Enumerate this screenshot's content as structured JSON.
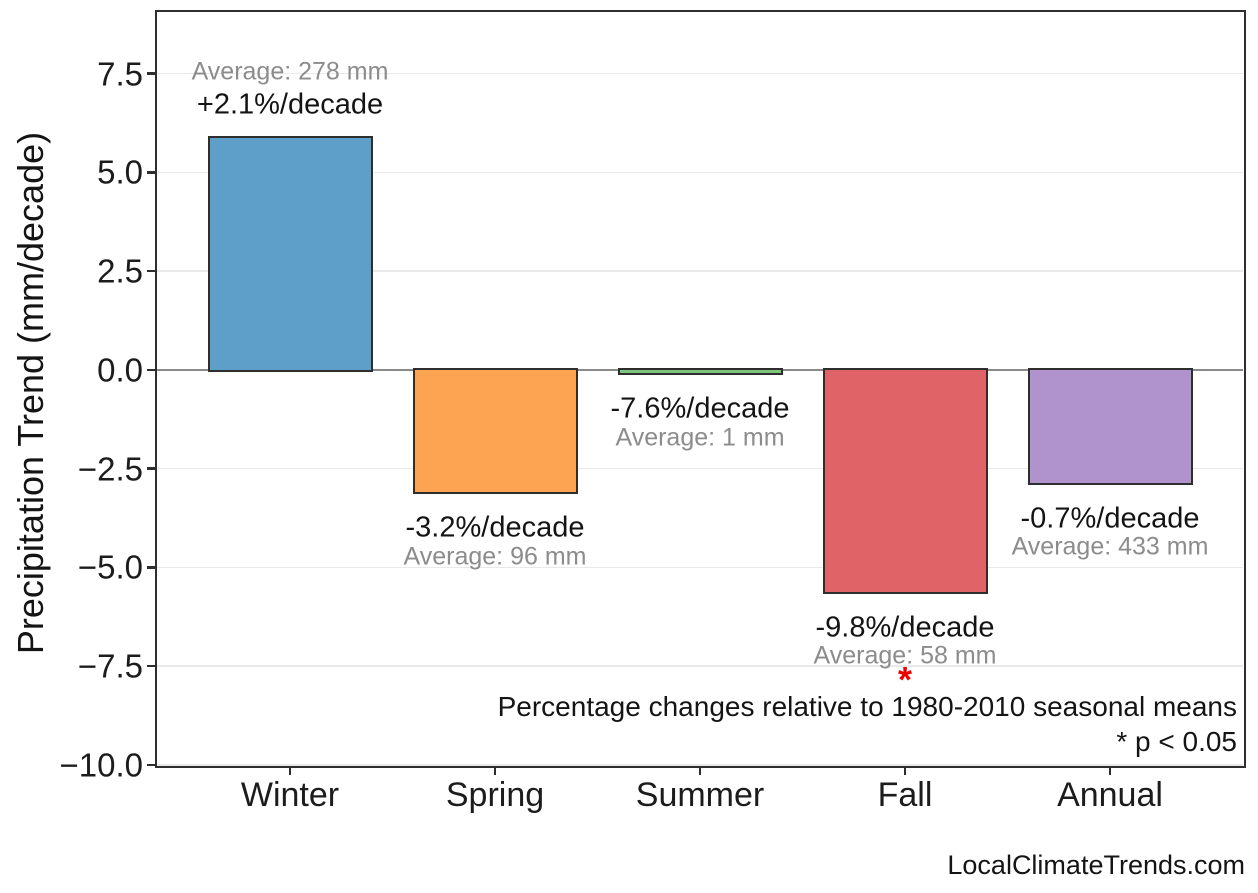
{
  "figure": {
    "background": "#ffffff"
  },
  "chart_data": {
    "type": "bar",
    "title": "",
    "xlabel": "",
    "ylabel": "Precipitation Trend (mm/decade)",
    "ylim": [
      -10,
      9.06
    ],
    "grid": "horizontal",
    "legend": "none",
    "yticks": {
      "values": [
        7.5,
        5.0,
        2.5,
        0.0,
        -2.5,
        -5.0,
        -7.5,
        -10.0
      ],
      "labels": [
        "7.5",
        "5.0",
        "2.5",
        "0.0",
        "−2.5",
        "−5.0",
        "−7.5",
        "−10.0"
      ]
    },
    "categories": [
      "Winter",
      "Spring",
      "Summer",
      "Fall",
      "Annual"
    ],
    "values_mm_per_decade": [
      5.87,
      -3.09,
      -0.08,
      -5.62,
      -2.86
    ],
    "bars": [
      {
        "category": "Winter",
        "value": 5.87,
        "pct_label": "+2.1%/decade",
        "avg_label": "Average: 278 mm",
        "color": "#5e9fca",
        "significant": false
      },
      {
        "category": "Spring",
        "value": -3.09,
        "pct_label": "-3.2%/decade",
        "avg_label": "Average: 96 mm",
        "color": "#fda452",
        "significant": false
      },
      {
        "category": "Summer",
        "value": -0.08,
        "pct_label": "-7.6%/decade",
        "avg_label": "Average: 1 mm",
        "color": "#7ec67e",
        "significant": false
      },
      {
        "category": "Fall",
        "value": -5.62,
        "pct_label": "-9.8%/decade",
        "avg_label": "Average: 58 mm",
        "color": "#e06467",
        "significant": true
      },
      {
        "category": "Annual",
        "value": -2.86,
        "pct_label": "-0.7%/decade",
        "avg_label": "Average: 433 mm",
        "color": "#b092cd",
        "significant": false
      }
    ],
    "annotations": {
      "note_line1": "Percentage changes relative to 1980-2010 seasonal means",
      "note_line2": "* p < 0.05",
      "significance_marker": "*",
      "significance_color": "#ee0000"
    },
    "watermark": "LocalClimateTrends.com",
    "colors": {
      "bar_edge": "#2e2e2e",
      "zero_line": "#8a8a8a",
      "gridline": "#e9e9e9",
      "spine": "#2e2e2e",
      "pct_text": "#141414",
      "avg_text": "#8c8c8c"
    }
  }
}
